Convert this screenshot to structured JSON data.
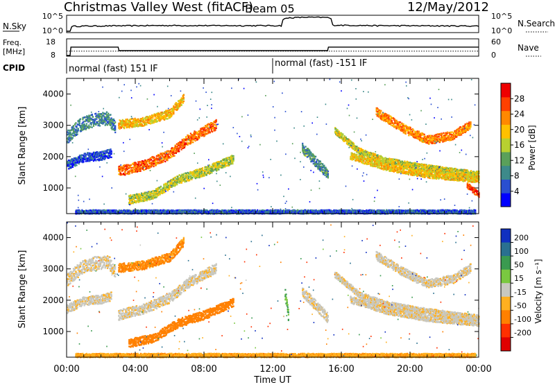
{
  "header": {
    "station": "Christmas Valley West (fitACF)",
    "beam": "Beam 05",
    "date": "12/May/2012"
  },
  "summary_panels": {
    "nsky_label": "N.Sky",
    "nsky_ticks": [
      "10^5",
      "10^0"
    ],
    "nsearch_label": "N.Search",
    "nsearch_ticks": [
      "10^5",
      "10^0"
    ],
    "freq_label_line1": "Freq.",
    "freq_label_line2": "[MHz]",
    "freq_ticks": [
      "18",
      "8"
    ],
    "nave_label": "Nave",
    "nave_ticks": [
      "60",
      "0"
    ],
    "cpid_label": "CPID",
    "cpid_segments": [
      {
        "start_hour": 0.1,
        "label": "normal (fast) 151 IF"
      },
      {
        "start_hour": 12.0,
        "label": "normal (fast) -151 IF"
      }
    ]
  },
  "panels": {
    "power_title": "Power [dB]",
    "velocity_title": "Velocity [m s⁻¹]",
    "ylabel": "Slant Range [km]",
    "xlabel": "Time UT"
  },
  "chart_data": [
    {
      "type": "line",
      "title": "",
      "series": [
        {
          "name": "N.Sky",
          "x": [
            0,
            0.2,
            0.25,
            3,
            6,
            9,
            12.5,
            13,
            14,
            15.2,
            15.5,
            18,
            21,
            24
          ],
          "y": [
            1,
            1,
            50,
            70,
            90,
            80,
            80,
            40000,
            60000,
            50000,
            120,
            80,
            70,
            60
          ]
        },
        {
          "name": "Freq. [MHz]",
          "x": [
            0,
            0.2,
            0.25,
            3,
            3.05,
            15.2,
            15.25,
            24
          ],
          "y": [
            8,
            8,
            13.5,
            13.5,
            11.2,
            11.2,
            13.5,
            13.5
          ]
        },
        {
          "name": "Nave",
          "x": [
            0,
            24
          ],
          "y": [
            17,
            17
          ]
        }
      ]
    },
    {
      "type": "heatmap",
      "title": "Power [dB]",
      "xlabel": "Time UT",
      "ylabel": "Slant Range [km]",
      "x_ticks": [
        "00:00",
        "04:00",
        "08:00",
        "12:00",
        "16:00",
        "20:00",
        "00:00"
      ],
      "xlim": [
        0,
        24
      ],
      "ylim": [
        180,
        4500
      ],
      "y_ticks": [
        1000,
        2000,
        3000,
        4000
      ],
      "colorbar": {
        "label": "Power [dB]",
        "ticks": [
          4,
          8,
          12,
          16,
          20,
          24,
          28
        ],
        "range": [
          0,
          32
        ],
        "colors": [
          "#0000ff",
          "#2a4fd0",
          "#3d8a8a",
          "#5aa05a",
          "#b8d030",
          "#ffc000",
          "#ff8800",
          "#ff4000",
          "#ee0000"
        ]
      },
      "scatter_bands": [
        {
          "t": [
            0.0,
            0.8,
            1.6,
            2.4,
            2.8
          ],
          "r": [
            2650,
            3050,
            3200,
            3250,
            2950
          ],
          "w": 420,
          "p": 9
        },
        {
          "t": [
            0.0,
            1.0,
            2.0,
            2.6
          ],
          "r": [
            1750,
            2000,
            2050,
            2150
          ],
          "w": 280,
          "p": 5
        },
        {
          "t": [
            3.0,
            4.5,
            6.0,
            6.8
          ],
          "r": [
            3050,
            3150,
            3400,
            3900
          ],
          "w": 280,
          "p": 20
        },
        {
          "t": [
            3.0,
            4.5,
            6.0,
            7.0,
            8.0,
            8.7
          ],
          "r": [
            1550,
            1750,
            2100,
            2550,
            2850,
            3050
          ],
          "w": 320,
          "p": 25
        },
        {
          "t": [
            3.6,
            5.0,
            6.5,
            8.0,
            9.7
          ],
          "r": [
            650,
            800,
            1300,
            1550,
            1950
          ],
          "w": 280,
          "p": 16
        },
        {
          "t": [
            13.7,
            14.5,
            15.2
          ],
          "r": [
            2300,
            1850,
            1450
          ],
          "w": 320,
          "p": 10
        },
        {
          "t": [
            15.6,
            17.0,
            18.5,
            20.5,
            22.5,
            24.0
          ],
          "r": [
            2850,
            2200,
            1900,
            1700,
            1550,
            1450
          ],
          "w": 200,
          "p": 17
        },
        {
          "t": [
            16.5,
            18.5,
            21.0,
            24.0
          ],
          "r": [
            2050,
            1700,
            1450,
            1300
          ],
          "w": 220,
          "p": 19
        },
        {
          "t": [
            18.0,
            19.5,
            21.0,
            22.5,
            23.5
          ],
          "r": [
            3450,
            2950,
            2550,
            2700,
            3050
          ],
          "w": 280,
          "p": 23
        },
        {
          "t": [
            23.3,
            24.0
          ],
          "r": [
            1100,
            800
          ],
          "w": 180,
          "p": 27
        },
        {
          "t": [
            0.5,
            6.0,
            12.0,
            18.0,
            23.8
          ],
          "r": [
            260,
            260,
            260,
            260,
            260
          ],
          "w": 120,
          "p": 6
        }
      ]
    },
    {
      "type": "heatmap",
      "title": "Velocity [m s⁻¹]",
      "xlabel": "Time UT",
      "ylabel": "Slant Range [km]",
      "x_ticks": [
        "00:00",
        "04:00",
        "08:00",
        "12:00",
        "16:00",
        "20:00",
        "00:00"
      ],
      "xlim": [
        0,
        24
      ],
      "ylim": [
        180,
        4500
      ],
      "y_ticks": [
        1000,
        2000,
        3000,
        4000
      ],
      "colorbar": {
        "label": "Velocity [m s⁻¹]",
        "tick_labels": [
          "200",
          "100",
          "50",
          "15",
          "-15",
          "-50",
          "-100",
          "-200"
        ],
        "colors": [
          "#1030c0",
          "#2a7090",
          "#3a9a50",
          "#7ac840",
          "#c8c8c0",
          "#ffb020",
          "#ff8000",
          "#ff3000",
          "#e00000"
        ]
      },
      "scatter_bands": [
        {
          "t": [
            0.0,
            0.8,
            1.6,
            2.4,
            2.8
          ],
          "r": [
            2650,
            3050,
            3200,
            3250,
            2950
          ],
          "w": 420,
          "v": -5
        },
        {
          "t": [
            0.0,
            1.0,
            2.0,
            2.6
          ],
          "r": [
            1750,
            2000,
            2050,
            2150
          ],
          "w": 280,
          "v": -5
        },
        {
          "t": [
            3.0,
            4.5,
            6.0,
            6.8
          ],
          "r": [
            3050,
            3150,
            3400,
            3900
          ],
          "w": 280,
          "v": -60
        },
        {
          "t": [
            3.0,
            4.5,
            6.0,
            7.0,
            8.0,
            8.7
          ],
          "r": [
            1550,
            1750,
            2100,
            2550,
            2850,
            3050
          ],
          "w": 320,
          "v": -5
        },
        {
          "t": [
            3.6,
            5.0,
            6.5,
            8.0,
            9.7
          ],
          "r": [
            650,
            800,
            1300,
            1550,
            1950
          ],
          "w": 280,
          "v": -70
        },
        {
          "t": [
            13.7,
            14.5,
            15.2
          ],
          "r": [
            2300,
            1850,
            1450
          ],
          "w": 320,
          "v": -5
        },
        {
          "t": [
            15.6,
            17.0,
            18.5,
            20.5,
            22.5,
            24.0
          ],
          "r": [
            2850,
            2200,
            1900,
            1700,
            1550,
            1450
          ],
          "w": 200,
          "v": -5
        },
        {
          "t": [
            16.5,
            18.5,
            21.0,
            24.0
          ],
          "r": [
            2050,
            1700,
            1450,
            1300
          ],
          "w": 220,
          "v": -5
        },
        {
          "t": [
            18.0,
            19.5,
            21.0,
            22.5,
            23.5
          ],
          "r": [
            3450,
            2950,
            2550,
            2700,
            3050
          ],
          "w": 280,
          "v": -5
        },
        {
          "t": [
            12.7,
            12.9
          ],
          "r": [
            2200,
            1500
          ],
          "w": 400,
          "v": 35
        },
        {
          "t": [
            0.5,
            6.0,
            12.0,
            18.0,
            23.8
          ],
          "r": [
            260,
            260,
            260,
            260,
            260
          ],
          "w": 120,
          "v": -40
        }
      ]
    }
  ]
}
